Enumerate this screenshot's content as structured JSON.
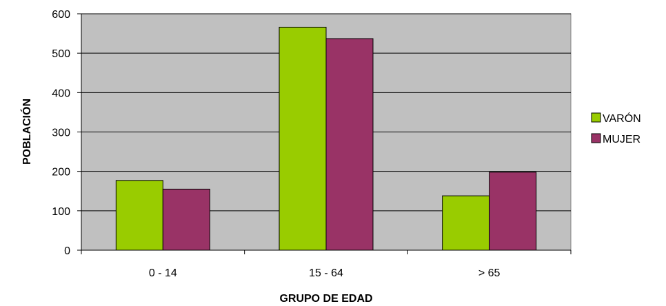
{
  "chart_data": {
    "type": "bar",
    "title": "",
    "xlabel": "GRUPO DE EDAD",
    "ylabel": "POBLACIÓN",
    "categories": [
      "0 - 14",
      "15 - 64",
      "> 65"
    ],
    "series": [
      {
        "name": "VARÓN",
        "color": "#99cc00",
        "values": [
          177,
          566,
          138
        ]
      },
      {
        "name": "MUJER",
        "color": "#993366",
        "values": [
          155,
          537,
          198
        ]
      }
    ],
    "ylim": [
      0,
      600
    ],
    "yticks": [
      0,
      100,
      200,
      300,
      400,
      500,
      600
    ],
    "grid": true,
    "plot_background": "#c0c0c0",
    "legend_position": "right"
  }
}
